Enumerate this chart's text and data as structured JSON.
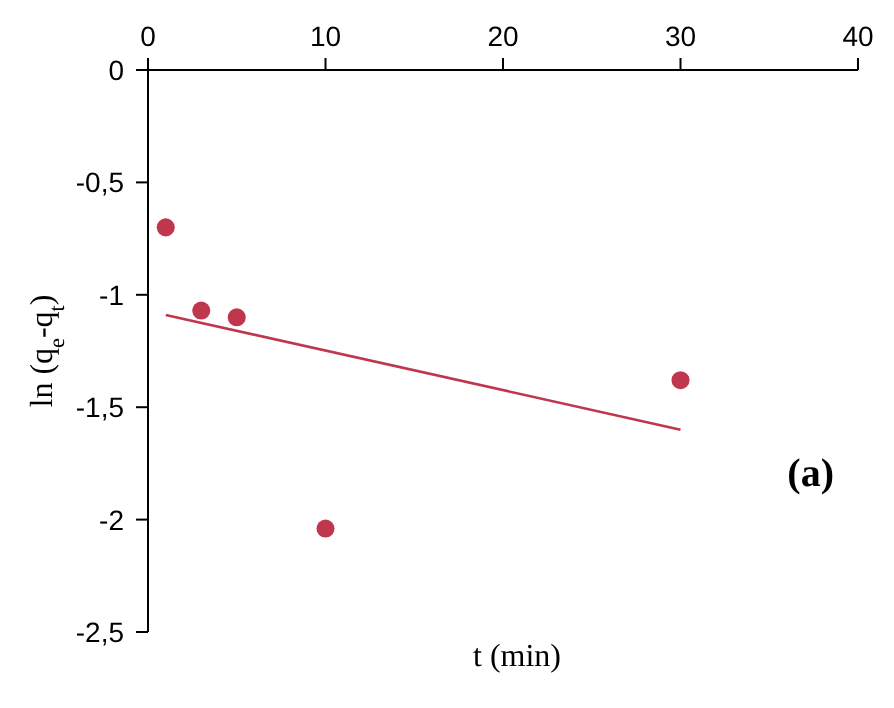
{
  "chart_data": {
    "type": "scatter",
    "xlabel": "t (min)",
    "ylabel": "ln (q$_{e}$-q$_{t}$)",
    "annotations": [
      "(a)"
    ],
    "xlim": [
      0,
      40
    ],
    "xticks": [
      0,
      10,
      20,
      30,
      40
    ],
    "ylim": [
      -2.5,
      0
    ],
    "yticks": [
      0,
      {
        "value": -0.5,
        "label": "-0,5"
      },
      -1,
      {
        "value": -1.5,
        "label": "-1,5"
      },
      -2,
      {
        "value": -2.5,
        "label": "-2,5"
      }
    ],
    "grid": false,
    "legend": false,
    "marker": "circle",
    "series": [
      {
        "color": "#c0364c",
        "x": [
          1,
          3,
          5,
          10,
          30
        ],
        "values": [
          -0.7,
          -1.07,
          -1.1,
          -2.04,
          -1.38
        ]
      },
      {
        "type": "line",
        "color": "#c0364c",
        "x": [
          1,
          30
        ],
        "values": [
          -1.09,
          -1.6
        ],
        "marker": "none",
        "line_style": "solid"
      }
    ]
  }
}
